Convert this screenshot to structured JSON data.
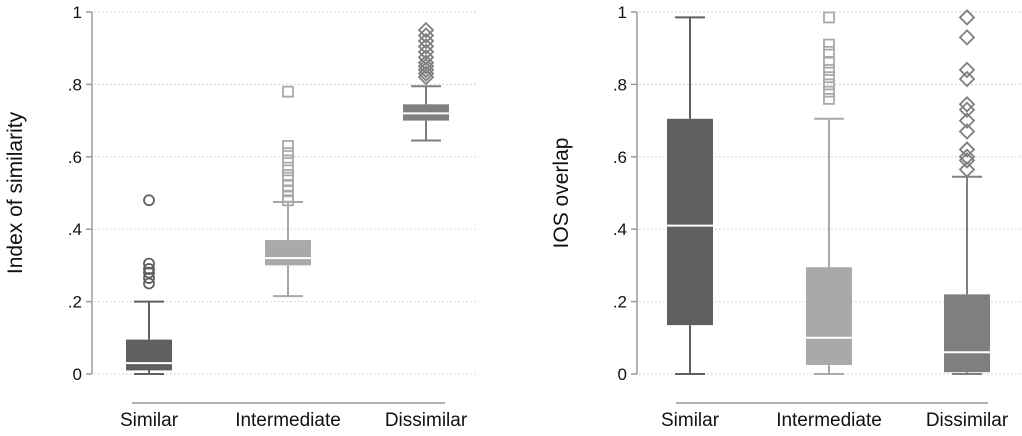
{
  "colors": {
    "grid": "#c8c8c8",
    "axis": "#9a9a9a",
    "text": "#111111",
    "series": [
      "#5f5f5f",
      "#a9a9a9",
      "#7f7f7f"
    ]
  },
  "chart_data": [
    {
      "type": "box",
      "ylabel": "Index of similarity",
      "ylim": [
        0,
        1
      ],
      "yticks": [
        0,
        0.2,
        0.4,
        0.6,
        0.8,
        1
      ],
      "ytick_labels": [
        "0",
        ".2",
        ".4",
        ".6",
        ".8",
        "1"
      ],
      "grid": true,
      "categories": [
        "Similar",
        "Intermediate",
        "Dissimilar"
      ],
      "boxes": [
        {
          "category": "Similar",
          "marker": "circle",
          "whisker_low": 0.0,
          "q1": 0.01,
          "median": 0.03,
          "q3": 0.095,
          "whisker_high": 0.2,
          "outliers": [
            0.48,
            0.305,
            0.29,
            0.28,
            0.265,
            0.25
          ]
        },
        {
          "category": "Intermediate",
          "marker": "square",
          "whisker_low": 0.215,
          "q1": 0.3,
          "median": 0.32,
          "q3": 0.37,
          "whisker_high": 0.475,
          "outliers": [
            0.78,
            0.63,
            0.61,
            0.59,
            0.57,
            0.55,
            0.535,
            0.52,
            0.505,
            0.49,
            0.48
          ]
        },
        {
          "category": "Dissimilar",
          "marker": "diamond",
          "whisker_low": 0.645,
          "q1": 0.7,
          "median": 0.72,
          "q3": 0.745,
          "whisker_high": 0.795,
          "outliers": [
            0.95,
            0.935,
            0.92,
            0.905,
            0.89,
            0.875,
            0.86,
            0.85,
            0.84,
            0.83,
            0.82
          ]
        }
      ]
    },
    {
      "type": "box",
      "ylabel": "IOS overlap",
      "ylim": [
        0,
        1
      ],
      "yticks": [
        0,
        0.2,
        0.4,
        0.6,
        0.8,
        1
      ],
      "ytick_labels": [
        "0",
        ".2",
        ".4",
        ".6",
        ".8",
        "1"
      ],
      "grid": true,
      "categories": [
        "Similar",
        "Intermediate",
        "Dissimilar"
      ],
      "boxes": [
        {
          "category": "Similar",
          "marker": "circle",
          "whisker_low": 0.0,
          "q1": 0.135,
          "median": 0.41,
          "q3": 0.705,
          "whisker_high": 0.985,
          "outliers": []
        },
        {
          "category": "Intermediate",
          "marker": "square",
          "whisker_low": 0.0,
          "q1": 0.025,
          "median": 0.1,
          "q3": 0.295,
          "whisker_high": 0.705,
          "outliers": [
            0.985,
            0.91,
            0.89,
            0.86,
            0.84,
            0.82,
            0.8,
            0.78,
            0.76
          ]
        },
        {
          "category": "Dissimilar",
          "marker": "diamond",
          "whisker_low": 0.0,
          "q1": 0.005,
          "median": 0.06,
          "q3": 0.22,
          "whisker_high": 0.545,
          "outliers": [
            0.985,
            0.93,
            0.84,
            0.815,
            0.745,
            0.73,
            0.7,
            0.67,
            0.62,
            0.6,
            0.59,
            0.565
          ]
        }
      ]
    }
  ]
}
